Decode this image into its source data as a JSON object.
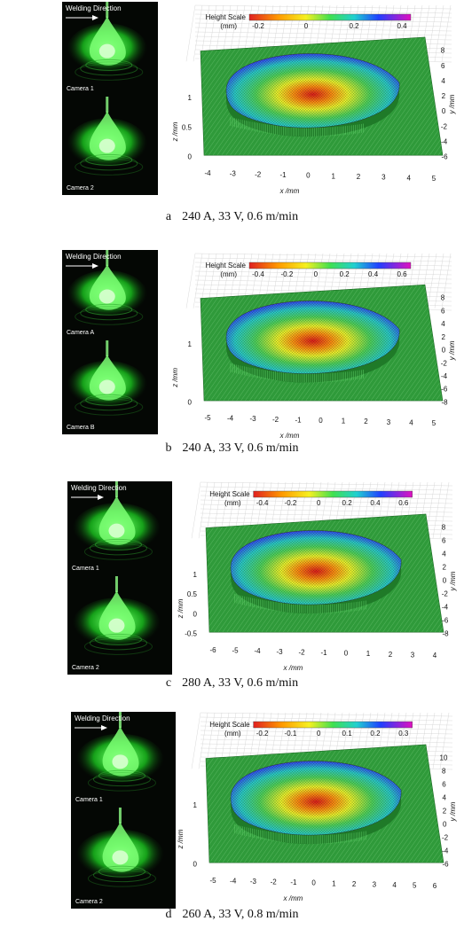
{
  "figures": [
    {
      "letter": "a",
      "caption": "240 A, 33 V, 0.6 m/min",
      "welding_direction": "Welding Direction",
      "camera_top": "Camera 1",
      "camera_bottom": "Camera 2",
      "scale_title": "Height Scale",
      "scale_unit": "(mm)",
      "scale_ticks": [
        "-0.2",
        "0",
        "0.2",
        "0.4"
      ],
      "x_ticks": [
        "-4",
        "-3",
        "-2",
        "-1",
        "0",
        "1",
        "2",
        "3",
        "4",
        "5"
      ],
      "y_ticks": [
        "8",
        "6",
        "4",
        "2",
        "0",
        "-2",
        "-4",
        "-6"
      ],
      "z_ticks": [
        "1",
        "0.5",
        "0"
      ],
      "x_label": "x /mm",
      "y_label": "y /mm",
      "z_label": "z /mm"
    },
    {
      "letter": "b",
      "caption": "240 A, 33 V, 0.6 m/min",
      "welding_direction": "Welding Direction",
      "camera_top": "Camera A",
      "camera_bottom": "Camera B",
      "scale_title": "Height Scale",
      "scale_unit": "(mm)",
      "scale_ticks": [
        "-0.4",
        "-0.2",
        "0",
        "0.2",
        "0.4",
        "0.6"
      ],
      "x_ticks": [
        "-5",
        "-4",
        "-3",
        "-2",
        "-1",
        "0",
        "1",
        "2",
        "3",
        "4",
        "5"
      ],
      "y_ticks": [
        "8",
        "6",
        "4",
        "2",
        "0",
        "-2",
        "-4",
        "-6",
        "-8"
      ],
      "z_ticks": [
        "1",
        "0"
      ],
      "x_label": "x /mm",
      "y_label": "y /mm",
      "z_label": "z /mm"
    },
    {
      "letter": "c",
      "caption": "280 A, 33 V, 0.6 m/min",
      "welding_direction": "Welding Direction",
      "camera_top": "Camera 1",
      "camera_bottom": "Camera 2",
      "scale_title": "Height Scale",
      "scale_unit": "(mm)",
      "scale_ticks": [
        "-0.4",
        "-0.2",
        "0",
        "0.2",
        "0.4",
        "0.6"
      ],
      "x_ticks": [
        "-6",
        "-5",
        "-4",
        "-3",
        "-2",
        "-1",
        "0",
        "1",
        "2",
        "3",
        "4"
      ],
      "y_ticks": [
        "8",
        "6",
        "4",
        "2",
        "0",
        "-2",
        "-4",
        "-6",
        "-8"
      ],
      "z_ticks": [
        "1",
        "0.5",
        "0",
        "-0.5"
      ],
      "x_label": "x /mm",
      "y_label": "y /mm",
      "z_label": "z /mm"
    },
    {
      "letter": "d",
      "caption": "260 A, 33 V, 0.8 m/min",
      "welding_direction": "Welding Direction",
      "camera_top": "Camera 1",
      "camera_bottom": "Camera 2",
      "scale_title": "Height Scale",
      "scale_unit": "(mm)",
      "scale_ticks": [
        "-0.2",
        "-0.1",
        "0",
        "0.1",
        "0.2",
        "0.3"
      ],
      "x_ticks": [
        "-5",
        "-4",
        "-3",
        "-2",
        "-1",
        "0",
        "1",
        "2",
        "3",
        "4",
        "5",
        "6"
      ],
      "y_ticks": [
        "10",
        "8",
        "6",
        "4",
        "2",
        "0",
        "-2",
        "-4",
        "-6"
      ],
      "z_ticks": [
        "1",
        "0"
      ],
      "x_label": "x /mm",
      "y_label": "y /mm",
      "z_label": "z /mm"
    }
  ]
}
